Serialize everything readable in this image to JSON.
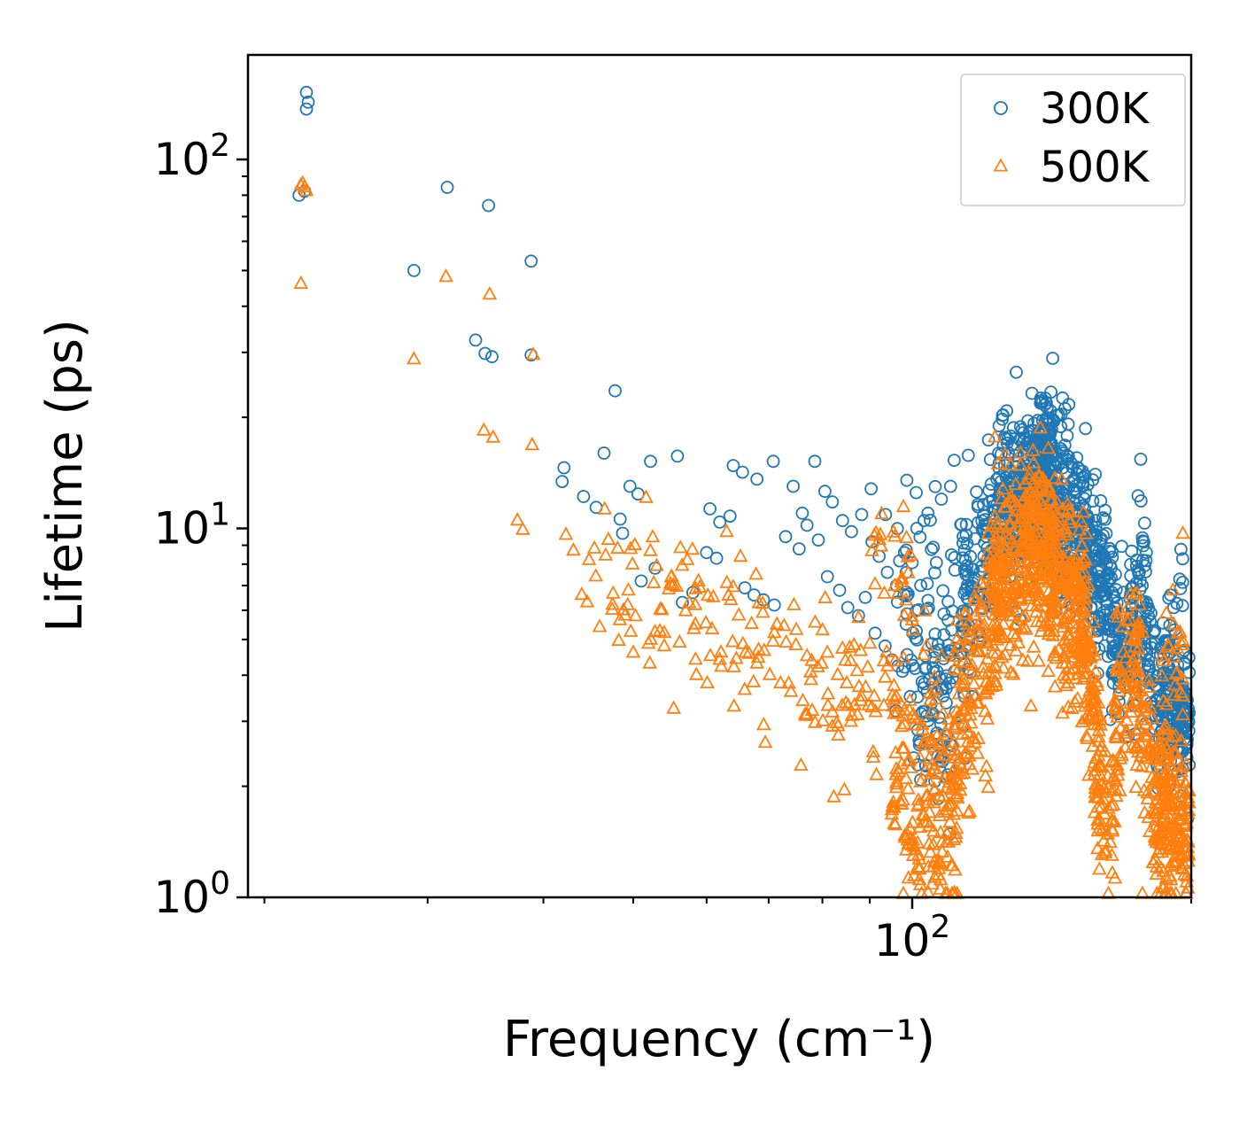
{
  "figure": {
    "background": "#ffffff"
  },
  "chart_data": {
    "type": "scatter",
    "title": "",
    "x_axis": {
      "label": "Frequency (cm⁻¹)",
      "scale": "log",
      "range": [
        19.2,
        200
      ],
      "major_ticks": [
        {
          "value": 100,
          "label": "10^2"
        }
      ],
      "minor_ticks": [
        20,
        30,
        40,
        50,
        60,
        70,
        80,
        90,
        200
      ]
    },
    "y_axis": {
      "label": "Lifetime (ps)",
      "scale": "log",
      "range": [
        1,
        192
      ],
      "major_ticks": [
        {
          "value": 1,
          "label": "10^0"
        },
        {
          "value": 10,
          "label": "10^1"
        },
        {
          "value": 100,
          "label": "10^2"
        }
      ],
      "minor_ticks": [
        2,
        3,
        4,
        5,
        6,
        7,
        8,
        9,
        20,
        30,
        40,
        50,
        60,
        70,
        80,
        90
      ]
    },
    "legend": {
      "position": "upper-right"
    },
    "series": [
      {
        "name": "300K",
        "marker": "circle",
        "color": "#1f77b4",
        "points": [
          [
            22.2,
            152
          ],
          [
            22.3,
            143
          ],
          [
            22.2,
            137
          ],
          [
            21.8,
            80
          ],
          [
            22.1,
            82
          ],
          [
            31.5,
            84
          ],
          [
            34.9,
            75
          ],
          [
            29.0,
            50
          ],
          [
            38.8,
            53
          ],
          [
            33.8,
            32.4
          ],
          [
            34.6,
            29.8
          ],
          [
            35.2,
            29.2
          ],
          [
            38.8,
            29.5
          ],
          [
            47.8,
            23.6
          ],
          [
            46.5,
            16.0
          ],
          [
            42.1,
            14.6
          ],
          [
            41.9,
            13.4
          ],
          [
            44.2,
            12.2
          ],
          [
            45.6,
            11.4
          ],
          [
            48.4,
            10.6
          ],
          [
            48.7,
            9.7
          ],
          [
            52.2,
            15.2
          ],
          [
            55.8,
            15.7
          ],
          [
            49.6,
            13.0
          ],
          [
            50.6,
            12.4
          ],
          [
            52.8,
            7.8
          ],
          [
            51.0,
            7.2
          ],
          [
            58.0,
            6.7
          ],
          [
            56.5,
            6.3
          ],
          [
            60.5,
            11.3
          ],
          [
            62.0,
            10.4
          ],
          [
            63.6,
            10.8
          ],
          [
            60.0,
            8.6
          ],
          [
            61.5,
            8.3
          ],
          [
            64.1,
            14.8
          ],
          [
            65.6,
            14.2
          ],
          [
            68.0,
            13.6
          ],
          [
            70.8,
            15.2
          ],
          [
            74.4,
            13.0
          ],
          [
            76.1,
            11.0
          ],
          [
            78.5,
            15.2
          ],
          [
            66.0,
            6.9
          ],
          [
            67.5,
            6.6
          ],
          [
            69.1,
            6.4
          ],
          [
            71.0,
            6.2
          ],
          [
            73.0,
            9.5
          ],
          [
            75.5,
            8.8
          ],
          [
            77.0,
            10.2
          ],
          [
            79.2,
            9.3
          ],
          [
            80.5,
            12.6
          ],
          [
            82.0,
            11.8
          ],
          [
            84.1,
            10.5
          ],
          [
            86.0,
            9.8
          ],
          [
            88.2,
            10.9
          ],
          [
            81.0,
            7.4
          ],
          [
            83.5,
            6.8
          ],
          [
            85.2,
            6.1
          ],
          [
            87.5,
            5.8
          ],
          [
            89.0,
            6.5
          ],
          [
            90.5,
            9.2
          ],
          [
            92.1,
            8.4
          ],
          [
            94.0,
            7.6
          ],
          [
            96.2,
            7.0
          ],
          [
            98.0,
            6.6
          ],
          [
            91.2,
            5.2
          ],
          [
            93.5,
            4.8
          ],
          [
            95.1,
            4.4
          ],
          [
            97.6,
            4.1
          ],
          [
            90.3,
            12.8
          ],
          [
            93.6,
            10.9
          ],
          [
            101.0,
            12.5
          ],
          [
            104.0,
            11.0
          ],
          [
            107.5,
            12.0
          ],
          [
            110.0,
            13.0
          ],
          [
            103.0,
            10.5
          ],
          [
            111.0,
            15.3
          ],
          [
            129.5,
            26.5
          ],
          [
            174.6,
            7.9
          ],
          [
            176.2,
            7.2
          ],
          [
            177.1,
            7.0
          ],
          [
            190.0,
            6.6
          ],
          [
            191.5,
            6.1
          ]
        ],
        "density_clusters": [
          {
            "f": [
              96,
              114
            ],
            "tau": [
              6.5,
              4.0
            ],
            "spread": 0.18,
            "n": 100
          },
          {
            "f": [
              100,
              112
            ],
            "tau": [
              3.1,
              2.7
            ],
            "spread": 0.1,
            "n": 35
          },
          {
            "f": [
              113,
              126
            ],
            "tau": [
              6.0,
              11.0
            ],
            "spread": 0.13,
            "n": 140
          },
          {
            "f": [
              124,
              142
            ],
            "tau": [
              11.0,
              13.5
            ],
            "spread": 0.12,
            "n": 280
          },
          {
            "f": [
              132,
              140
            ],
            "tau": [
              16.0,
              18.0
            ],
            "spread": 0.06,
            "n": 45
          },
          {
            "f": [
              140,
              155
            ],
            "tau": [
              12.5,
              9.0
            ],
            "spread": 0.12,
            "n": 230
          },
          {
            "f": [
              154,
              166
            ],
            "tau": [
              8.5,
              5.5
            ],
            "spread": 0.11,
            "n": 140
          },
          {
            "f": [
              165,
              173
            ],
            "tau": [
              5.2,
              4.2
            ],
            "spread": 0.1,
            "n": 60
          },
          {
            "f": [
              172,
              179
            ],
            "tau": [
              5.5,
              6.5
            ],
            "spread": 0.12,
            "n": 60
          },
          {
            "f": [
              178,
              184
            ],
            "tau": [
              5.0,
              3.5
            ],
            "spread": 0.1,
            "n": 45
          },
          {
            "f": [
              184,
              199
            ],
            "tau": [
              3.2,
              3.0
            ],
            "spread": 0.09,
            "n": 160
          },
          {
            "f": [
              186,
              197
            ],
            "tau": [
              4.8,
              5.6
            ],
            "spread": 0.1,
            "n": 25
          }
        ]
      },
      {
        "name": "500K",
        "marker": "triangle",
        "color": "#ff7f0e",
        "points": [
          [
            22.0,
            86
          ],
          [
            22.1,
            84
          ],
          [
            22.2,
            82
          ],
          [
            21.9,
            85
          ],
          [
            21.9,
            46
          ],
          [
            29.0,
            28.7
          ],
          [
            31.4,
            48
          ],
          [
            35.0,
            43
          ],
          [
            34.5,
            18.4
          ],
          [
            35.3,
            17.6
          ],
          [
            38.9,
            16.8
          ],
          [
            39.0,
            29.5
          ],
          [
            37.5,
            10.5
          ],
          [
            38.0,
            9.9
          ],
          [
            42.3,
            9.6
          ],
          [
            43.1,
            8.7
          ],
          [
            44.8,
            8.2
          ],
          [
            44.0,
            6.6
          ],
          [
            44.6,
            6.3
          ],
          [
            47.0,
            9.3
          ],
          [
            48.1,
            8.8
          ],
          [
            50.2,
            9.0
          ],
          [
            46.0,
            5.4
          ],
          [
            47.5,
            6.2
          ],
          [
            49.0,
            5.8
          ],
          [
            50.0,
            4.6
          ],
          [
            52.1,
            4.3
          ],
          [
            54.0,
            5.2
          ],
          [
            56.1,
            4.9
          ],
          [
            53.0,
            7.9
          ],
          [
            55.0,
            7.4
          ],
          [
            57.2,
            8.2
          ],
          [
            59.0,
            6.9
          ],
          [
            61.0,
            6.5
          ],
          [
            63.1,
            7.1
          ],
          [
            58.5,
            4.0
          ],
          [
            60.1,
            3.8
          ],
          [
            62.0,
            4.4
          ],
          [
            64.2,
            4.2
          ],
          [
            65.0,
            5.8
          ],
          [
            67.1,
            5.5
          ],
          [
            69.0,
            5.9
          ],
          [
            66.1,
            4.6
          ],
          [
            68.0,
            4.3
          ],
          [
            70.2,
            4.0
          ],
          [
            71.0,
            5.2
          ],
          [
            73.1,
            4.9
          ],
          [
            75.0,
            5.3
          ],
          [
            72.1,
            3.8
          ],
          [
            74.0,
            3.6
          ],
          [
            76.2,
            3.4
          ],
          [
            77.0,
            4.5
          ],
          [
            79.1,
            4.2
          ],
          [
            81.0,
            4.6
          ],
          [
            78.0,
            3.2
          ],
          [
            80.1,
            3.0
          ],
          [
            82.0,
            2.9
          ],
          [
            83.1,
            4.0
          ],
          [
            85.0,
            3.8
          ],
          [
            87.2,
            4.1
          ],
          [
            84.0,
            3.3
          ],
          [
            86.1,
            3.1
          ],
          [
            88.0,
            3.4
          ],
          [
            89.1,
            3.7
          ],
          [
            91.0,
            3.5
          ],
          [
            93.2,
            3.3
          ],
          [
            84.5,
            1.95
          ],
          [
            104.0,
            1.03
          ],
          [
            135.0,
            16.2
          ],
          [
            158.5,
            1.35
          ],
          [
            160.2,
            1.3
          ],
          [
            186.0,
            1.32
          ],
          [
            195.0,
            1.3
          ]
        ],
        "density_clusters": [
          {
            "f": [
              45,
              95
            ],
            "tau": [
              8.5,
              3.3
            ],
            "spread": 0.13,
            "n": 120
          },
          {
            "f": [
              90,
              102
            ],
            "tau": [
              9.0,
              7.0
            ],
            "spread": 0.1,
            "n": 25
          },
          {
            "f": [
              95,
              112
            ],
            "tau": [
              2.5,
              1.6
            ],
            "spread": 0.16,
            "n": 150
          },
          {
            "f": [
              98,
              108
            ],
            "tau": [
              1.35,
              1.25
            ],
            "spread": 0.05,
            "n": 35
          },
          {
            "f": [
              110,
              124
            ],
            "tau": [
              2.5,
              6.0
            ],
            "spread": 0.15,
            "n": 150
          },
          {
            "f": [
              122,
              142
            ],
            "tau": [
              7.0,
              9.0
            ],
            "spread": 0.13,
            "n": 300
          },
          {
            "f": [
              132,
              140
            ],
            "tau": [
              11.0,
              12.0
            ],
            "spread": 0.06,
            "n": 35
          },
          {
            "f": [
              140,
              154
            ],
            "tau": [
              8.0,
              5.5
            ],
            "spread": 0.13,
            "n": 230
          },
          {
            "f": [
              152,
              160
            ],
            "tau": [
              5.0,
              2.5
            ],
            "spread": 0.12,
            "n": 80
          },
          {
            "f": [
              157,
              166
            ],
            "tau": [
              1.9,
              1.5
            ],
            "spread": 0.09,
            "n": 55
          },
          {
            "f": [
              164,
              176
            ],
            "tau": [
              3.0,
              4.5
            ],
            "spread": 0.14,
            "n": 80
          },
          {
            "f": [
              174,
              182
            ],
            "tau": [
              3.5,
              2.2
            ],
            "spread": 0.12,
            "n": 55
          },
          {
            "f": [
              182,
              199
            ],
            "tau": [
              1.75,
              1.5
            ],
            "spread": 0.1,
            "n": 180
          },
          {
            "f": [
              184,
              196
            ],
            "tau": [
              3.0,
              4.0
            ],
            "spread": 0.12,
            "n": 45
          }
        ]
      }
    ]
  }
}
